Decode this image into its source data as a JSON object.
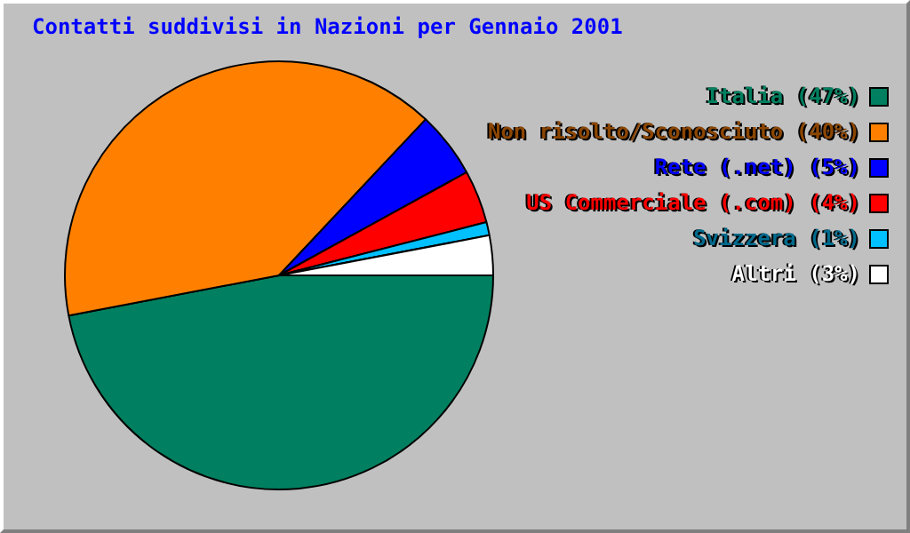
{
  "chart_data": {
    "type": "pie",
    "title": "Contatti suddivisi in Nazioni per Gennaio 2001",
    "categories": [
      "Italia (47%)",
      "Non risolto/Sconosciuto (40%)",
      "Rete (.net) (5%)",
      "US Commerciale (.com) (4%)",
      "Svizzera (1%)",
      "Altri (3%)"
    ],
    "values": [
      47,
      40,
      5,
      4,
      1,
      3
    ],
    "colors": [
      "#008060",
      "#ff8000",
      "#0000ff",
      "#ff0000",
      "#00c0ff",
      "#ffffff"
    ],
    "legend": "right"
  }
}
